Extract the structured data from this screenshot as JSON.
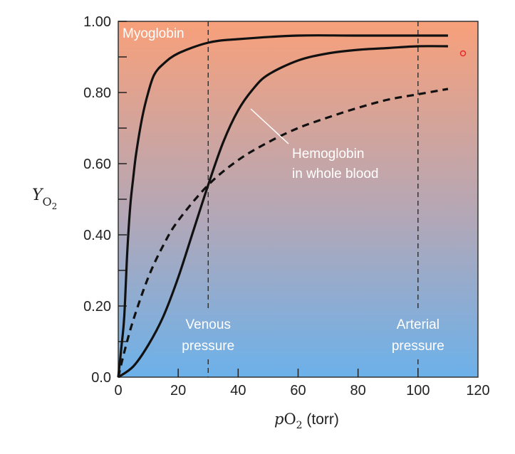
{
  "chart_data": {
    "type": "line",
    "xlabel": "pO2 (torr)",
    "xlabel_parts": {
      "italic": "p",
      "main": "O",
      "sub": "2",
      "rest": " (torr)"
    },
    "ylabel_parts": {
      "main": "Y",
      "sub": "O",
      "subsub": "2"
    },
    "xlim": [
      0,
      120
    ],
    "ylim": [
      0,
      1.0
    ],
    "x_ticks": [
      0,
      20,
      40,
      60,
      80,
      100,
      120
    ],
    "x_tick_labels": [
      "0",
      "20",
      "40",
      "60",
      "80",
      "100",
      "120"
    ],
    "y_ticks": [
      0,
      0.2,
      0.4,
      0.6,
      0.8,
      1.0
    ],
    "y_tick_labels": [
      "0.0",
      "0.20",
      "0.40",
      "0.60",
      "0.80",
      "1.00"
    ],
    "grid": false,
    "background_gradient": {
      "top": "#f8a07a",
      "middle": "#b3a7b7",
      "bottom": "#6cb1ea"
    },
    "series": [
      {
        "name": "Myoglobin",
        "style": "solid",
        "color": "#111111",
        "x": [
          0,
          1,
          2,
          3,
          4,
          5,
          6,
          8,
          10,
          12,
          15,
          20,
          30,
          40,
          60,
          80,
          110
        ],
        "y": [
          0,
          0.08,
          0.17,
          0.35,
          0.48,
          0.56,
          0.63,
          0.73,
          0.8,
          0.85,
          0.88,
          0.91,
          0.94,
          0.95,
          0.96,
          0.96,
          0.96
        ]
      },
      {
        "name": "",
        "style": "solid",
        "color": "#111111",
        "x": [
          0,
          5,
          10,
          15,
          20,
          25,
          30,
          35,
          40,
          45,
          50,
          60,
          70,
          80,
          90,
          100,
          110
        ],
        "y": [
          0,
          0.03,
          0.09,
          0.17,
          0.28,
          0.41,
          0.54,
          0.66,
          0.75,
          0.81,
          0.85,
          0.89,
          0.91,
          0.92,
          0.925,
          0.93,
          0.93
        ]
      },
      {
        "name": "",
        "style": "dashed",
        "color": "#111111",
        "x": [
          0,
          2,
          5,
          10,
          15,
          20,
          30,
          40,
          50,
          60,
          70,
          80,
          90,
          100,
          110
        ],
        "y": [
          0,
          0.07,
          0.16,
          0.28,
          0.37,
          0.44,
          0.54,
          0.61,
          0.66,
          0.7,
          0.73,
          0.757,
          0.78,
          0.795,
          0.81
        ]
      }
    ],
    "reference_lines": [
      {
        "x": 30,
        "label_lines": [
          "Venous",
          "pressure"
        ]
      },
      {
        "x": 100,
        "label_lines": [
          "Arterial",
          "pressure"
        ]
      }
    ],
    "annotations": {
      "myoglobin": "Myoglobin",
      "hemoglobin_lines": [
        "Hemoglobin",
        "in whole blood"
      ]
    },
    "marker_color": "#e8282a"
  }
}
